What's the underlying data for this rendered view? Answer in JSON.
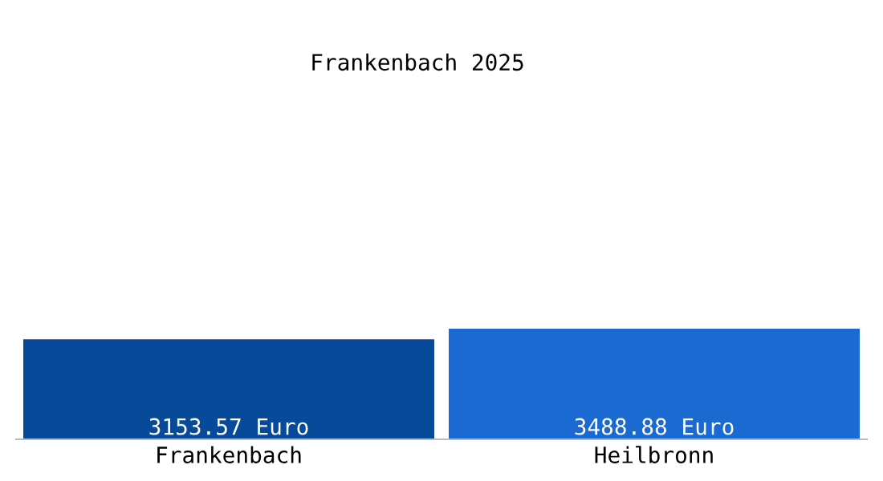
{
  "chart_data": {
    "type": "bar",
    "title": "Frankenbach 2025",
    "categories": [
      "Frankenbach",
      "Heilbronn"
    ],
    "values": [
      3153.57,
      3488.88
    ],
    "colors": [
      "#084a9a",
      "#1a6ad2"
    ],
    "value_labels": [
      "3153.57 Euro",
      "3488.88 Euro"
    ],
    "grid": false,
    "legend": false
  }
}
